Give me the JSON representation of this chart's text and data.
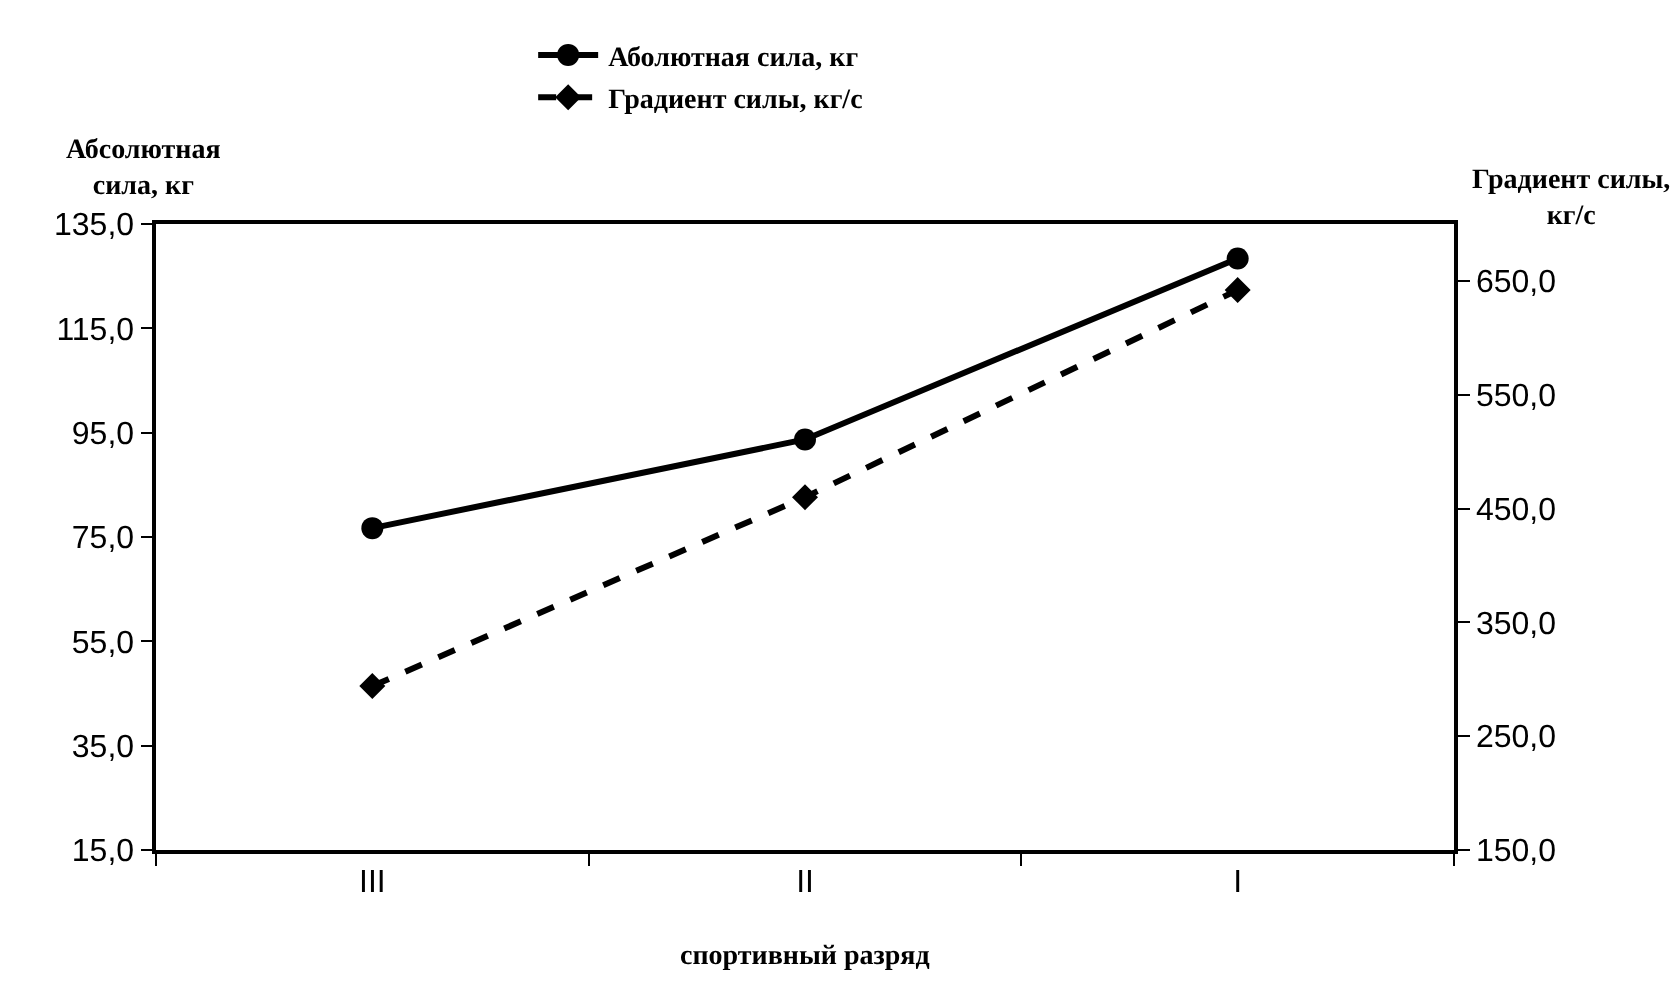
{
  "chart_data": {
    "type": "line",
    "xlabel": "спортивный разряд",
    "ylabel": "Абсолютная сила, кг",
    "y2label": "Градиент силы, кг/с",
    "categories": [
      "III",
      "II",
      "I"
    ],
    "series": [
      {
        "name": "Аболютная сила, кг",
        "color": "#000000",
        "values": [
          76.7,
          93.7,
          128.4
        ],
        "marker": "circle",
        "line_style": "solid"
      },
      {
        "name": "Градиент силы, кг/с",
        "color": "#000000",
        "values": [
          294,
          460,
          642
        ],
        "marker": "diamond",
        "line_style": "dashed",
        "axis": "y2"
      }
    ],
    "ylim": [
      15,
      135
    ],
    "yticks": [
      {
        "value": 15,
        "label": "15,0"
      },
      {
        "value": 35,
        "label": "35,0"
      },
      {
        "value": 55,
        "label": "55,0"
      },
      {
        "value": 75,
        "label": "75,0"
      },
      {
        "value": 95,
        "label": "95,0"
      },
      {
        "value": 115,
        "label": "115,0"
      },
      {
        "value": 135,
        "label": "135,0"
      }
    ],
    "y2lim": [
      150,
      700
    ],
    "y2ticks": [
      {
        "value": 150,
        "label": "150,0"
      },
      {
        "value": 250,
        "label": "250,0"
      },
      {
        "value": 350,
        "label": "350,0"
      },
      {
        "value": 450,
        "label": "450,0"
      },
      {
        "value": 550,
        "label": "550,0"
      },
      {
        "value": 650,
        "label": "650,0"
      }
    ],
    "grid": false,
    "legend": "top"
  }
}
